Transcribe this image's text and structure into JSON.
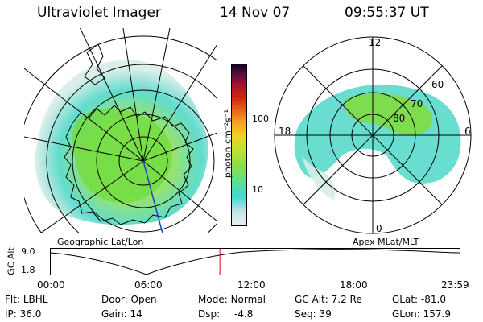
{
  "header": {
    "instrument": "Ultraviolet Imager",
    "date": "14 Nov 07",
    "time": "09:55:37 UT"
  },
  "colorbar": {
    "unit_label": "photon cm⁻²s⁻¹",
    "ticks": [
      "100",
      "10"
    ],
    "colors": [
      "#e8f0ee",
      "#c8e4e4",
      "#3fd9d0",
      "#5fe08a",
      "#90e040",
      "#c8e030",
      "#f0d020",
      "#f8a020",
      "#e86018",
      "#d02010",
      "#a01030",
      "#501040",
      "#100020"
    ]
  },
  "geo_map": {
    "label": "Geographic Lat/Lon"
  },
  "apex_map": {
    "label": "Apex MLat/MLT",
    "mlt_labels": {
      "top": "12",
      "bottom": "0",
      "left": "18",
      "right": "6"
    },
    "lat_labels": [
      "60",
      "70",
      "80"
    ]
  },
  "altitude_plot": {
    "ylabel": "GC Alt",
    "yticks": [
      "9.0",
      "1.8"
    ],
    "xticks": [
      "00:00",
      "06:00",
      "12:00",
      "18:00",
      "23:59"
    ],
    "current_time_fraction": 0.414
  },
  "info": {
    "filter_label": "Flt:",
    "filter_value": "LBHL",
    "ip_label": "IP:",
    "ip_value": "36.0",
    "door_label": "Door:",
    "door_value": "Open",
    "gain_label": "Gain:",
    "gain_value": "14",
    "mode_label": "Mode:",
    "mode_value": "Normal",
    "dsp_label": "Dsp:",
    "dsp_value": "-4.8",
    "gcalt_label": "GC Alt:",
    "gcalt_value": "7.2 Re",
    "seq_label": "Seq:",
    "seq_value": "39",
    "glat_label": "GLat:",
    "glat_value": "-81.0",
    "glon_label": "GLon:",
    "glon_value": "157.9"
  }
}
